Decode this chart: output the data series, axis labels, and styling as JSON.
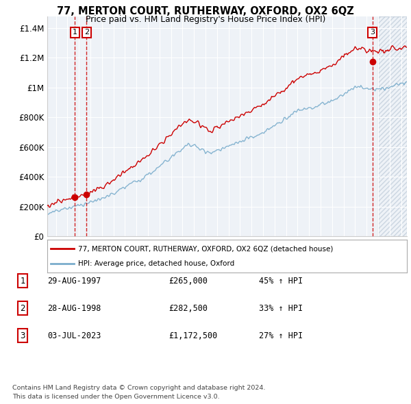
{
  "title": "77, MERTON COURT, RUTHERWAY, OXFORD, OX2 6QZ",
  "subtitle": "Price paid vs. HM Land Registry's House Price Index (HPI)",
  "ylabel_ticks": [
    "£0",
    "£200K",
    "£400K",
    "£600K",
    "£800K",
    "£1M",
    "£1.2M",
    "£1.4M"
  ],
  "ytick_values": [
    0,
    200000,
    400000,
    600000,
    800000,
    1000000,
    1200000,
    1400000
  ],
  "ylim": [
    0,
    1480000
  ],
  "xlim_start": 1995.25,
  "xlim_end": 2026.5,
  "future_shade_start": 2024.0,
  "purchase_dates": [
    1997.66,
    1998.66,
    2023.5
  ],
  "purchase_prices": [
    265000,
    282500,
    1172500
  ],
  "purchase_labels": [
    "1",
    "2",
    "3"
  ],
  "legend_red_label": "77, MERTON COURT, RUTHERWAY, OXFORD, OX2 6QZ (detached house)",
  "legend_blue_label": "HPI: Average price, detached house, Oxford",
  "table_rows": [
    {
      "num": "1",
      "date": "29-AUG-1997",
      "price": "£265,000",
      "change": "45% ↑ HPI"
    },
    {
      "num": "2",
      "date": "28-AUG-1998",
      "price": "£282,500",
      "change": "33% ↑ HPI"
    },
    {
      "num": "3",
      "date": "03-JUL-2023",
      "price": "£1,172,500",
      "change": "27% ↑ HPI"
    }
  ],
  "footnote1": "Contains HM Land Registry data © Crown copyright and database right 2024.",
  "footnote2": "This data is licensed under the Open Government Licence v3.0.",
  "red_color": "#cc0000",
  "blue_color": "#7aadcc",
  "dashed_vline_color": "#cc0000",
  "background_color": "#eef2f7",
  "grid_color": "#ffffff",
  "hatch_color": "#aabbcc"
}
